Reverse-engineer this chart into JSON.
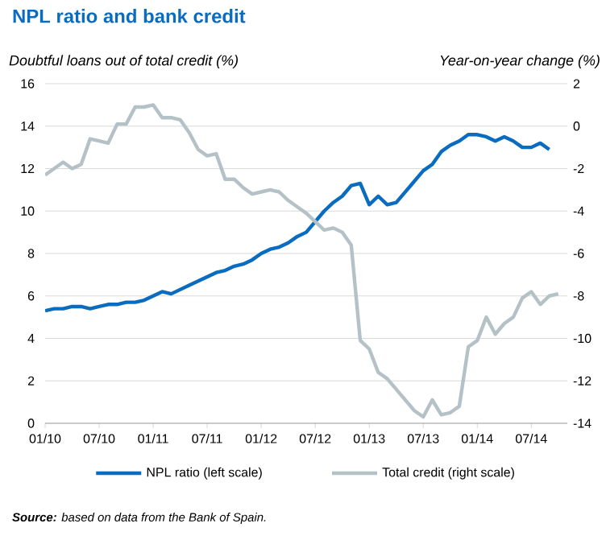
{
  "chart_data": {
    "type": "line",
    "title": "NPL ratio and bank credit",
    "ylabel": "Doubtful loans out of total credit (%)",
    "y2label": "Year-on-year change (%)",
    "annotations": [
      "**Source:** based on data from the Bank of Spain."
    ],
    "x": [
      "2010-01",
      "2010-02",
      "2010-03",
      "2010-04",
      "2010-05",
      "2010-06",
      "2010-07",
      "2010-08",
      "2010-09",
      "2010-10",
      "2010-11",
      "2010-12",
      "2011-01",
      "2011-02",
      "2011-03",
      "2011-04",
      "2011-05",
      "2011-06",
      "2011-07",
      "2011-08",
      "2011-09",
      "2011-10",
      "2011-11",
      "2011-12",
      "2012-01",
      "2012-02",
      "2012-03",
      "2012-04",
      "2012-05",
      "2012-06",
      "2012-07",
      "2012-08",
      "2012-09",
      "2012-10",
      "2012-11",
      "2012-12",
      "2013-01",
      "2013-02",
      "2013-03",
      "2013-04",
      "2013-05",
      "2013-06",
      "2013-07",
      "2013-08",
      "2013-09",
      "2013-10",
      "2013-11",
      "2013-12",
      "2014-01",
      "2014-02",
      "2014-03",
      "2014-04",
      "2014-05",
      "2014-06",
      "2014-07",
      "2014-08",
      "2014-09",
      "2014-10"
    ],
    "series": [
      {
        "name": "NPL ratio (left scale)",
        "color": "#0a6cc0",
        "values": [
          5.3,
          5.4,
          5.4,
          5.5,
          5.5,
          5.4,
          5.5,
          5.6,
          5.6,
          5.7,
          5.7,
          5.8,
          6.0,
          6.2,
          6.1,
          6.3,
          6.5,
          6.7,
          6.9,
          7.1,
          7.2,
          7.4,
          7.5,
          7.7,
          8.0,
          8.2,
          8.3,
          8.5,
          8.8,
          9.0,
          9.5,
          10.0,
          10.4,
          10.7,
          11.2,
          11.3,
          10.3,
          10.7,
          10.3,
          10.4,
          10.9,
          11.4,
          11.9,
          12.2,
          12.8,
          13.1,
          13.3,
          13.6,
          13.6,
          13.5,
          13.3,
          13.5,
          13.3,
          13.0,
          13.0,
          13.2,
          12.9,
          null
        ]
      },
      {
        "name": "Total credit (right scale)",
        "color": "#b4c2c8",
        "axis": "y2",
        "values": [
          -2.3,
          -2.0,
          -1.7,
          -2.0,
          -1.8,
          -0.6,
          -0.7,
          -0.8,
          0.1,
          0.1,
          0.9,
          0.9,
          1.0,
          0.4,
          0.4,
          0.3,
          -0.3,
          -1.1,
          -1.4,
          -1.3,
          -2.5,
          -2.5,
          -2.9,
          -3.2,
          -3.1,
          -3.0,
          -3.1,
          -3.5,
          -3.8,
          -4.1,
          -4.5,
          -4.9,
          -4.8,
          -5.0,
          -5.6,
          -10.1,
          -10.5,
          -11.6,
          -11.9,
          -12.4,
          -12.9,
          -13.4,
          -13.7,
          -12.9,
          -13.6,
          -13.5,
          -13.2,
          -10.4,
          -10.1,
          -9.0,
          -9.8,
          -9.3,
          -9.0,
          -8.1,
          -7.8,
          -8.4,
          -8.0,
          -7.9
        ]
      }
    ],
    "xlim": [
      "2010-01",
      "2014-11"
    ],
    "xticks": [
      {
        "value": "2010-01",
        "label": "01/10"
      },
      {
        "value": "2010-07",
        "label": "07/10"
      },
      {
        "value": "2011-01",
        "label": "01/11"
      },
      {
        "value": "2011-07",
        "label": "07/11"
      },
      {
        "value": "2012-01",
        "label": "01/12"
      },
      {
        "value": "2012-07",
        "label": "07/12"
      },
      {
        "value": "2013-01",
        "label": "01/13"
      },
      {
        "value": "2013-07",
        "label": "07/13"
      },
      {
        "value": "2014-01",
        "label": "01/14"
      },
      {
        "value": "2014-07",
        "label": "07/14"
      }
    ],
    "ylim": [
      0,
      16
    ],
    "yticks": [
      0,
      2,
      4,
      6,
      8,
      10,
      12,
      14,
      16
    ],
    "y2lim": [
      -14,
      2
    ],
    "y2ticks": [
      -14,
      -12,
      -10,
      -8,
      -6,
      -4,
      -2,
      0,
      2
    ],
    "grid": "y",
    "legend": "bottom"
  }
}
